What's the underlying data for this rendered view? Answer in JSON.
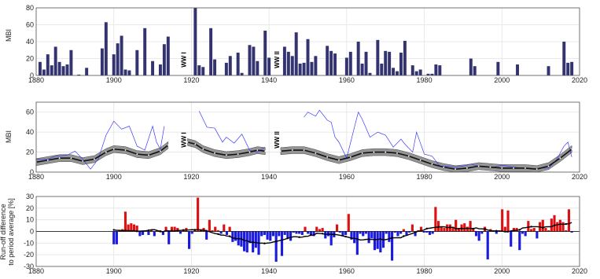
{
  "colors": {
    "navy": "#333370",
    "red": "#dd1111",
    "blue": "#1a1ae0",
    "band": "#8a8a8a",
    "thin_blue": "#3b3bff",
    "grid": "#e3e3e3"
  },
  "chart_data": [
    {
      "type": "bar",
      "panel": "top",
      "ylabel": "MBI",
      "xlim": [
        1880,
        2020
      ],
      "ylim": [
        0,
        80
      ],
      "xticks": [
        "1880",
        "1900",
        "1920",
        "1940",
        "1960",
        "1980",
        "2000",
        "2020"
      ],
      "yticks": [
        "0",
        "20",
        "40",
        "60",
        "80"
      ],
      "annotations": [
        "WW I",
        "WW II"
      ],
      "annotation_x": [
        1918,
        1942
      ],
      "years": [
        1881,
        1882,
        1883,
        1884,
        1885,
        1886,
        1887,
        1888,
        1889,
        1891,
        1893,
        1897,
        1898,
        1900,
        1901,
        1902,
        1903,
        1904,
        1906,
        1908,
        1910,
        1912,
        1913,
        1914,
        1921,
        1922,
        1923,
        1925,
        1926,
        1929,
        1930,
        1932,
        1933,
        1935,
        1936,
        1937,
        1939,
        1940,
        1944,
        1945,
        1946,
        1947,
        1948,
        1949,
        1950,
        1951,
        1952,
        1955,
        1956,
        1957,
        1960,
        1961,
        1963,
        1964,
        1965,
        1966,
        1968,
        1969,
        1970,
        1971,
        1972,
        1973,
        1974,
        1975,
        1977,
        1978,
        1979,
        1981,
        1982,
        1983,
        1984,
        1992,
        1993,
        1999,
        2004,
        2012,
        2016,
        2017,
        2018
      ],
      "values": [
        16,
        7,
        25,
        12,
        34,
        16,
        11,
        13,
        30,
        1,
        9,
        32,
        63,
        25,
        38,
        47,
        7,
        6,
        30,
        56,
        17,
        13,
        37,
        46,
        80,
        12,
        10,
        56,
        19,
        15,
        23,
        27,
        3,
        36,
        34,
        17,
        53,
        21,
        34,
        28,
        23,
        51,
        14,
        15,
        43,
        16,
        23,
        35,
        29,
        26,
        21,
        28,
        40,
        14,
        28,
        3,
        42,
        14,
        29,
        28,
        9,
        5,
        27,
        41,
        12,
        5,
        7,
        2,
        2,
        13,
        12,
        20,
        11,
        16,
        13,
        11,
        40,
        15,
        16
      ]
    },
    {
      "type": "line",
      "panel": "middle",
      "ylabel": "MBI",
      "xlim": [
        1880,
        2020
      ],
      "ylim": [
        0,
        70
      ],
      "xticks": [
        "1880",
        "1900",
        "1920",
        "1940",
        "1960",
        "1980",
        "2000",
        "2020"
      ],
      "yticks": [
        "0",
        "20",
        "40",
        "60"
      ],
      "annotations": [
        "WW I",
        "WW II"
      ],
      "annotation_x": [
        1918,
        1942
      ],
      "series": [
        {
          "style": "thin-blue",
          "segments": [
            [
              [
                1880,
                13
              ],
              [
                1883,
                13
              ],
              [
                1885,
                16
              ],
              [
                1888,
                17
              ],
              [
                1890,
                21
              ],
              [
                1892,
                13
              ],
              [
                1894,
                3
              ],
              [
                1896,
                13
              ],
              [
                1898,
                37
              ],
              [
                1900,
                51
              ],
              [
                1902,
                43
              ],
              [
                1904,
                46
              ],
              [
                1906,
                26
              ],
              [
                1908,
                22
              ],
              [
                1910,
                46
              ],
              [
                1911,
                30
              ],
              [
                1912,
                23
              ],
              [
                1913,
                46
              ]
            ],
            [
              [
                1922,
                61
              ],
              [
                1924,
                45
              ],
              [
                1926,
                44
              ],
              [
                1928,
                30
              ],
              [
                1929,
                35
              ],
              [
                1931,
                29
              ],
              [
                1933,
                38
              ],
              [
                1935,
                22
              ],
              [
                1937,
                20
              ],
              [
                1939,
                25
              ]
            ],
            [
              [
                1949,
                55
              ],
              [
                1950,
                60
              ],
              [
                1952,
                56
              ],
              [
                1953,
                62
              ],
              [
                1955,
                52
              ],
              [
                1956,
                50
              ],
              [
                1957,
                35
              ],
              [
                1958,
                30
              ],
              [
                1960,
                14
              ],
              [
                1962,
                45
              ],
              [
                1963,
                60
              ],
              [
                1964,
                53
              ],
              [
                1966,
                35
              ],
              [
                1968,
                40
              ],
              [
                1970,
                37
              ],
              [
                1972,
                25
              ],
              [
                1974,
                33
              ],
              [
                1975,
                28
              ],
              [
                1977,
                20
              ],
              [
                1978,
                40
              ],
              [
                1980,
                18
              ],
              [
                1982,
                16
              ],
              [
                1984,
                6
              ],
              [
                1986,
                6
              ],
              [
                1988,
                5
              ],
              [
                1990,
                6
              ],
              [
                1992,
                8
              ],
              [
                1995,
                5
              ],
              [
                1998,
                5
              ],
              [
                2000,
                7
              ],
              [
                2003,
                5
              ],
              [
                2005,
                4
              ],
              [
                2008,
                3
              ],
              [
                2010,
                4
              ],
              [
                2012,
                4
              ],
              [
                2014,
                12
              ],
              [
                2016,
                26
              ],
              [
                2017,
                30
              ],
              [
                2018,
                15
              ]
            ]
          ]
        },
        {
          "style": "smoothed-with-band",
          "segments": [
            [
              [
                1880,
                10
              ],
              [
                1883,
                12
              ],
              [
                1886,
                14
              ],
              [
                1889,
                14
              ],
              [
                1892,
                11
              ],
              [
                1895,
                13
              ],
              [
                1898,
                20
              ],
              [
                1900,
                23
              ],
              [
                1903,
                22
              ],
              [
                1906,
                18
              ],
              [
                1909,
                17
              ],
              [
                1912,
                21
              ],
              [
                1914,
                27
              ]
            ],
            [
              [
                1919,
                30
              ],
              [
                1921,
                28
              ],
              [
                1923,
                23
              ],
              [
                1926,
                19
              ],
              [
                1929,
                17
              ],
              [
                1932,
                18
              ],
              [
                1935,
                20
              ],
              [
                1937,
                22
              ],
              [
                1939,
                21
              ]
            ],
            [
              [
                1943,
                21
              ],
              [
                1946,
                22
              ],
              [
                1949,
                22
              ],
              [
                1952,
                19
              ],
              [
                1955,
                15
              ],
              [
                1958,
                12
              ],
              [
                1961,
                15
              ],
              [
                1964,
                19
              ],
              [
                1967,
                20
              ],
              [
                1970,
                20
              ],
              [
                1973,
                19
              ],
              [
                1976,
                16
              ],
              [
                1979,
                12
              ],
              [
                1982,
                8
              ],
              [
                1985,
                5
              ],
              [
                1988,
                3
              ],
              [
                1991,
                4
              ],
              [
                1994,
                6
              ],
              [
                1997,
                5
              ],
              [
                2000,
                4
              ],
              [
                2003,
                4
              ],
              [
                2006,
                4
              ],
              [
                2009,
                3
              ],
              [
                2012,
                6
              ],
              [
                2015,
                14
              ],
              [
                2018,
                23
              ]
            ]
          ]
        }
      ]
    },
    {
      "type": "bar",
      "panel": "bottom",
      "ylabel": "Run-off difference to period average [%]",
      "ylabel_lines": [
        "Run-off difference",
        "to period average [%]"
      ],
      "xlim": [
        1880,
        2020
      ],
      "ylim": [
        -30,
        30
      ],
      "xticks": [
        "1880",
        "1900",
        "1920",
        "1940",
        "1960",
        "1980",
        "2000",
        "2020"
      ],
      "yticks": [
        "-30",
        "-20",
        "-10",
        "0",
        "10",
        "20",
        "30"
      ],
      "start_year": 1900,
      "values": [
        -11,
        -11,
        1,
        2,
        17,
        6,
        7,
        6,
        5,
        -4,
        -3,
        1,
        -3,
        1,
        -4,
        1,
        1,
        -3,
        4,
        -11,
        4,
        4,
        3,
        -2,
        1,
        3,
        -15,
        -2,
        1,
        29,
        2,
        3,
        -7,
        10,
        1,
        4,
        1,
        -2,
        6,
        -3,
        4,
        -9,
        -8,
        -12,
        -13,
        -17,
        -18,
        -10,
        -18,
        -14,
        -20,
        -4,
        -3,
        -7,
        -8,
        -4,
        -26,
        -4,
        -21,
        -3,
        -6,
        -8,
        -1,
        -2,
        -2,
        -3,
        4,
        -2,
        -3,
        -4,
        4,
        2,
        3,
        -6,
        -4,
        -12,
        -5,
        6,
        -1,
        -4,
        -3,
        15,
        -7,
        -10,
        -20,
        -2,
        -4,
        -2,
        -10,
        -6,
        -16,
        -15,
        -18,
        -14,
        -2,
        -9,
        -25,
        -1,
        -4,
        -2,
        2,
        -3,
        -1,
        6,
        -4,
        1,
        4,
        -1,
        -1,
        -3,
        -2,
        21,
        9,
        4,
        3,
        6,
        6,
        4,
        10,
        3,
        6,
        7,
        4,
        9,
        3,
        -4,
        -8,
        -2,
        4,
        -24,
        2,
        1,
        -2,
        1,
        19,
        4,
        18,
        -13,
        3,
        3,
        -16,
        -2,
        -4,
        9,
        2,
        3,
        -6,
        8,
        10,
        3,
        1,
        11,
        14,
        8,
        10,
        8,
        1,
        19,
        -1
      ]
    }
  ]
}
